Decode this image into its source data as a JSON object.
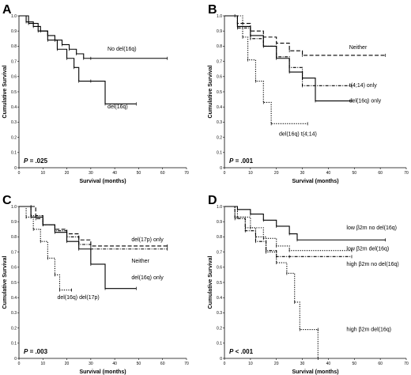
{
  "chart_data": [
    {
      "panel": "A",
      "type": "line",
      "xlabel": "Survival (months)",
      "ylabel": "Cumulative Survival",
      "xlim": [
        0,
        70
      ],
      "ylim": [
        0,
        1.0
      ],
      "xticks": [
        "0",
        "10",
        "20",
        "30",
        "40",
        "50",
        "60",
        "70"
      ],
      "yticks": [
        "0",
        "0.1",
        "0.2",
        "0.3",
        "0.4",
        "0.5",
        "0.6",
        "0.7",
        "0.8",
        "0.9",
        "1.0"
      ],
      "pvalue": {
        "label": "P",
        "text": " = .025"
      },
      "series": [
        {
          "name": "No del(16q)",
          "style": "solid",
          "x": [
            0,
            3,
            6,
            9,
            12,
            15,
            18,
            21,
            24,
            27,
            30,
            62
          ],
          "y": [
            1.0,
            0.96,
            0.93,
            0.9,
            0.87,
            0.84,
            0.81,
            0.78,
            0.75,
            0.72,
            0.72,
            0.72
          ]
        },
        {
          "name": "del(16q)",
          "style": "solid",
          "x": [
            0,
            4,
            8,
            12,
            16,
            20,
            23,
            25,
            30,
            36,
            49
          ],
          "y": [
            1.0,
            0.95,
            0.9,
            0.84,
            0.78,
            0.72,
            0.66,
            0.57,
            0.57,
            0.42,
            0.42
          ]
        }
      ],
      "annotations": [
        "No del(16q)",
        "del(16q)"
      ]
    },
    {
      "panel": "B",
      "type": "line",
      "xlabel": "Survival (months)",
      "ylabel": "Cumulative Survival",
      "xlim": [
        0,
        70
      ],
      "ylim": [
        0,
        1.0
      ],
      "xticks": [
        "0",
        "10",
        "20",
        "30",
        "40",
        "50",
        "60",
        "70"
      ],
      "yticks": [
        "0",
        "0.1",
        "0.2",
        "0.3",
        "0.4",
        "0.5",
        "0.6",
        "0.7",
        "0.8",
        "0.9",
        "1.0"
      ],
      "pvalue": {
        "label": "P",
        "text": " = .001"
      },
      "series": [
        {
          "name": "Neither",
          "style": "dashed",
          "x": [
            0,
            5,
            10,
            15,
            20,
            25,
            30,
            62
          ],
          "y": [
            1.0,
            0.95,
            0.9,
            0.86,
            0.82,
            0.77,
            0.74,
            0.74
          ]
        },
        {
          "name": "t(4;14) only",
          "style": "dashdot",
          "x": [
            0,
            5,
            10,
            15,
            20,
            25,
            30,
            49
          ],
          "y": [
            1.0,
            0.92,
            0.85,
            0.8,
            0.73,
            0.66,
            0.54,
            0.54
          ]
        },
        {
          "name": "del(16q) only",
          "style": "solid",
          "x": [
            0,
            5,
            10,
            15,
            20,
            25,
            30,
            35,
            49
          ],
          "y": [
            1.0,
            0.93,
            0.87,
            0.8,
            0.72,
            0.63,
            0.59,
            0.44,
            0.44
          ]
        },
        {
          "name": "del(16q) t(4;14)",
          "style": "dotted",
          "x": [
            0,
            4,
            7,
            9,
            12,
            15,
            18,
            32
          ],
          "y": [
            1.0,
            1.0,
            0.86,
            0.71,
            0.57,
            0.43,
            0.29,
            0.29
          ]
        }
      ],
      "annotations": [
        "Neither",
        "t(4;14) only",
        "del(16q) only",
        "del(16q) t(4;14)"
      ]
    },
    {
      "panel": "C",
      "type": "line",
      "xlabel": "Survival (months)",
      "ylabel": "Cumulative Survival",
      "xlim": [
        0,
        70
      ],
      "ylim": [
        0,
        1.0
      ],
      "xticks": [
        "0",
        "10",
        "20",
        "30",
        "40",
        "50",
        "60",
        "70"
      ],
      "yticks": [
        "0",
        "0.1",
        "0.2",
        "0.3",
        "0.4",
        "0.5",
        "0.6",
        "0.7",
        "0.8",
        "0.9",
        "1.0"
      ],
      "pvalue": {
        "label": "P",
        "text": " = .003"
      },
      "series": [
        {
          "name": "del(17p) only",
          "style": "dashed",
          "x": [
            0,
            5,
            7,
            10,
            15,
            20,
            25,
            30,
            62
          ],
          "y": [
            1.0,
            1.0,
            0.92,
            0.88,
            0.85,
            0.82,
            0.78,
            0.74,
            0.74
          ]
        },
        {
          "name": "Neither",
          "style": "dashdot",
          "x": [
            0,
            5,
            10,
            15,
            20,
            25,
            30,
            62
          ],
          "y": [
            1.0,
            0.94,
            0.88,
            0.84,
            0.8,
            0.75,
            0.72,
            0.72
          ]
        },
        {
          "name": "del(16q) only",
          "style": "solid",
          "x": [
            0,
            5,
            10,
            15,
            20,
            25,
            30,
            36,
            49
          ],
          "y": [
            1.0,
            0.93,
            0.88,
            0.83,
            0.77,
            0.72,
            0.62,
            0.46,
            0.46
          ]
        },
        {
          "name": "del(16q) del(17p)",
          "style": "dotted",
          "x": [
            0,
            3,
            6,
            9,
            12,
            15,
            17,
            22
          ],
          "y": [
            1.0,
            0.93,
            0.85,
            0.77,
            0.66,
            0.55,
            0.45,
            0.45
          ]
        }
      ],
      "annotations": [
        "del(17p) only",
        "Neither",
        "del(16q) only",
        "del(16q) del(17p)"
      ]
    },
    {
      "panel": "D",
      "type": "line",
      "xlabel": "Survival (months)",
      "ylabel": "Cumulative Survival",
      "xlim": [
        0,
        70
      ],
      "ylim": [
        0,
        1.0
      ],
      "xticks": [
        "0",
        "10",
        "20",
        "30",
        "40",
        "50",
        "60",
        "70"
      ],
      "yticks": [
        "0",
        "0.1",
        "0.2",
        "0.3",
        "0.4",
        "0.5",
        "0.6",
        "0.7",
        "0.8",
        "0.9",
        "1.0"
      ],
      "pvalue": {
        "label": "P",
        "text": " < .001"
      },
      "series": [
        {
          "name": "low β2m no del(16q)",
          "style": "solid",
          "x": [
            0,
            5,
            10,
            15,
            20,
            25,
            28,
            62
          ],
          "y": [
            1.0,
            0.98,
            0.95,
            0.91,
            0.87,
            0.82,
            0.78,
            0.78
          ]
        },
        {
          "name": "low β2m del(16q)",
          "style": "dotted",
          "x": [
            0,
            5,
            10,
            15,
            20,
            25,
            49
          ],
          "y": [
            1.0,
            0.93,
            0.86,
            0.79,
            0.74,
            0.71,
            0.71
          ]
        },
        {
          "name": "high β2m no del(16q)",
          "style": "dashdot",
          "x": [
            0,
            4,
            8,
            12,
            16,
            20,
            25,
            49
          ],
          "y": [
            1.0,
            0.92,
            0.84,
            0.77,
            0.71,
            0.67,
            0.67,
            0.67
          ]
        },
        {
          "name": "high β2m del(16q)",
          "style": "dotted",
          "x": [
            0,
            4,
            8,
            12,
            16,
            20,
            24,
            27,
            29,
            36,
            36
          ],
          "y": [
            1.0,
            0.93,
            0.86,
            0.8,
            0.7,
            0.63,
            0.56,
            0.37,
            0.19,
            0.19,
            0.0
          ]
        }
      ],
      "annotations": [
        "low β2m no del(16q)",
        "low β2m del(16q)",
        "high β2m no del(16q)",
        "high β2m del(16q)"
      ]
    }
  ]
}
